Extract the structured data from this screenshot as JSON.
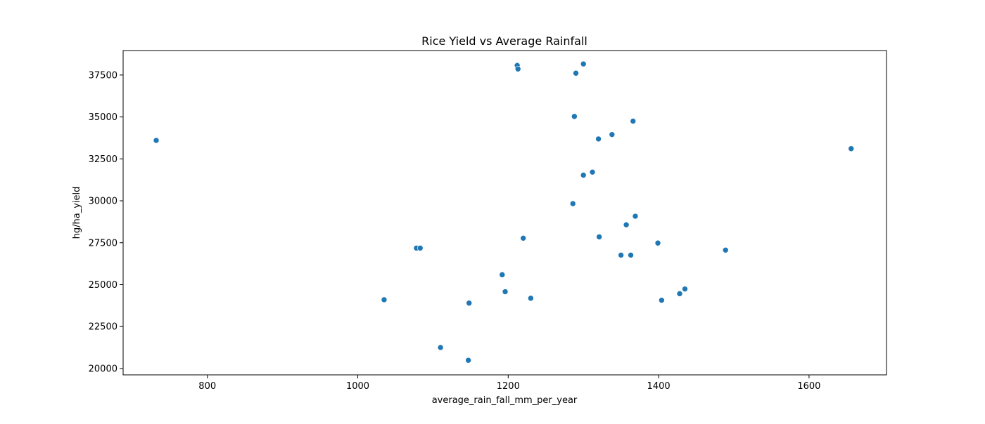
{
  "chart_data": {
    "type": "scatter",
    "title": "Rice Yield vs Average Rainfall",
    "xlabel": "average_rain_fall_mm_per_year",
    "ylabel": "hg/ha_yield",
    "xlim": [
      688,
      1703
    ],
    "ylim": [
      19620,
      38960
    ],
    "xticks": [
      800,
      1000,
      1200,
      1400,
      1600
    ],
    "yticks": [
      20000,
      22500,
      25000,
      27500,
      30000,
      32500,
      35000,
      37500
    ],
    "grid": false,
    "marker_color": "#1f77b4",
    "points": [
      {
        "x": 732,
        "y": 33600
      },
      {
        "x": 1035,
        "y": 24100
      },
      {
        "x": 1078,
        "y": 27180
      },
      {
        "x": 1083,
        "y": 27180
      },
      {
        "x": 1110,
        "y": 21250
      },
      {
        "x": 1147,
        "y": 20490
      },
      {
        "x": 1148,
        "y": 23900
      },
      {
        "x": 1192,
        "y": 25590
      },
      {
        "x": 1196,
        "y": 24580
      },
      {
        "x": 1212,
        "y": 38070
      },
      {
        "x": 1213,
        "y": 37860
      },
      {
        "x": 1220,
        "y": 27770
      },
      {
        "x": 1230,
        "y": 24190
      },
      {
        "x": 1286,
        "y": 29830
      },
      {
        "x": 1288,
        "y": 35030
      },
      {
        "x": 1290,
        "y": 37610
      },
      {
        "x": 1300,
        "y": 31530
      },
      {
        "x": 1300,
        "y": 38160
      },
      {
        "x": 1312,
        "y": 31710
      },
      {
        "x": 1320,
        "y": 33690
      },
      {
        "x": 1321,
        "y": 27850
      },
      {
        "x": 1338,
        "y": 33950
      },
      {
        "x": 1350,
        "y": 26760
      },
      {
        "x": 1357,
        "y": 28570
      },
      {
        "x": 1363,
        "y": 26760
      },
      {
        "x": 1366,
        "y": 34750
      },
      {
        "x": 1369,
        "y": 29080
      },
      {
        "x": 1399,
        "y": 27480
      },
      {
        "x": 1404,
        "y": 24070
      },
      {
        "x": 1428,
        "y": 24460
      },
      {
        "x": 1435,
        "y": 24740
      },
      {
        "x": 1489,
        "y": 27060
      },
      {
        "x": 1656,
        "y": 33110
      }
    ]
  }
}
